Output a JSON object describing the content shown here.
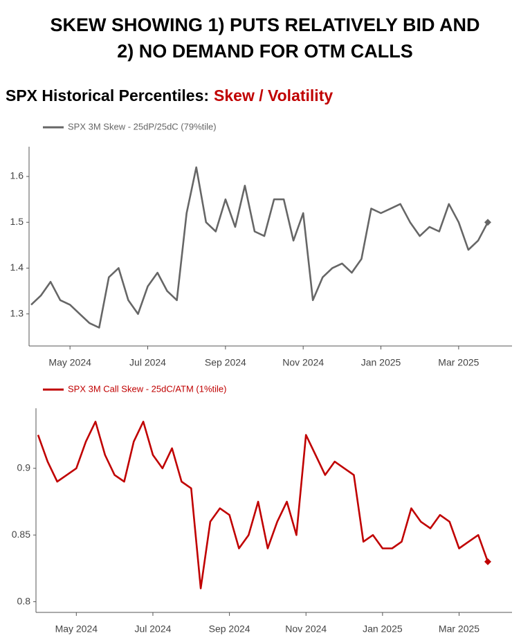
{
  "header": {
    "title": [
      "SKEW SHOWING 1) PUTS RELATIVELY BID AND",
      "2) NO DEMAND FOR OTM CALLS"
    ],
    "subtitle": "SPX Historical Percentiles:",
    "subtitle_highlight": "Skew / Volatility"
  },
  "chart_data": [
    {
      "type": "line",
      "x": [
        "2024-04",
        "2024-04",
        "2024-04",
        "2024-04",
        "2024-05",
        "2024-05",
        "2024-05",
        "2024-05",
        "2024-06",
        "2024-06",
        "2024-06",
        "2024-06",
        "2024-07",
        "2024-07",
        "2024-07",
        "2024-07",
        "2024-08",
        "2024-08",
        "2024-08",
        "2024-08",
        "2024-09",
        "2024-09",
        "2024-09",
        "2024-09",
        "2024-10",
        "2024-10",
        "2024-10",
        "2024-10",
        "2024-11",
        "2024-11",
        "2024-11",
        "2024-11",
        "2024-12",
        "2024-12",
        "2024-12",
        "2024-12",
        "2025-01",
        "2025-01",
        "2025-01",
        "2025-01",
        "2025-02",
        "2025-02",
        "2025-02",
        "2025-02",
        "2025-03",
        "2025-03",
        "2025-03",
        "2025-03"
      ],
      "series": [
        {
          "name": "SPX 3M Skew - 25dP/25dC (79%tile)",
          "color": "#666666",
          "values": [
            1.32,
            1.34,
            1.37,
            1.33,
            1.32,
            1.3,
            1.28,
            1.27,
            1.38,
            1.4,
            1.33,
            1.3,
            1.36,
            1.39,
            1.35,
            1.33,
            1.52,
            1.62,
            1.5,
            1.48,
            1.55,
            1.49,
            1.58,
            1.48,
            1.47,
            1.55,
            1.55,
            1.46,
            1.52,
            1.33,
            1.38,
            1.4,
            1.41,
            1.39,
            1.42,
            1.53,
            1.52,
            1.53,
            1.54,
            1.5,
            1.47,
            1.49,
            1.48,
            1.54,
            1.5,
            1.44,
            1.46,
            1.5
          ]
        }
      ],
      "xticks": [
        {
          "value": "2024-05",
          "label": "May 2024"
        },
        {
          "value": "2024-07",
          "label": "Jul 2024"
        },
        {
          "value": "2024-09",
          "label": "Sep 2024"
        },
        {
          "value": "2024-11",
          "label": "Nov 2024"
        },
        {
          "value": "2025-01",
          "label": "Jan 2025"
        },
        {
          "value": "2025-03",
          "label": "Mar 2025"
        }
      ],
      "ylim": [
        1.23,
        1.665
      ],
      "yticks": [
        1.3,
        1.4,
        1.5,
        1.6
      ],
      "end_marker": "diamond"
    },
    {
      "type": "line",
      "x": [
        "2024-04",
        "2024-04",
        "2024-04",
        "2024-04",
        "2024-05",
        "2024-05",
        "2024-05",
        "2024-05",
        "2024-06",
        "2024-06",
        "2024-06",
        "2024-06",
        "2024-07",
        "2024-07",
        "2024-07",
        "2024-07",
        "2024-08",
        "2024-08",
        "2024-08",
        "2024-08",
        "2024-09",
        "2024-09",
        "2024-09",
        "2024-09",
        "2024-10",
        "2024-10",
        "2024-10",
        "2024-10",
        "2024-11",
        "2024-11",
        "2024-11",
        "2024-11",
        "2024-12",
        "2024-12",
        "2024-12",
        "2024-12",
        "2025-01",
        "2025-01",
        "2025-01",
        "2025-01",
        "2025-02",
        "2025-02",
        "2025-02",
        "2025-02",
        "2025-03",
        "2025-03",
        "2025-03",
        "2025-03"
      ],
      "series": [
        {
          "name": "SPX 3M Call Skew - 25dC/ATM (1%tile)",
          "color": "#c00000",
          "values": [
            0.925,
            0.905,
            0.89,
            0.895,
            0.9,
            0.92,
            0.935,
            0.91,
            0.895,
            0.89,
            0.92,
            0.935,
            0.91,
            0.9,
            0.915,
            0.89,
            0.885,
            0.81,
            0.86,
            0.87,
            0.865,
            0.84,
            0.85,
            0.875,
            0.84,
            0.86,
            0.875,
            0.85,
            0.925,
            0.91,
            0.895,
            0.905,
            0.9,
            0.895,
            0.845,
            0.85,
            0.84,
            0.84,
            0.845,
            0.87,
            0.86,
            0.855,
            0.865,
            0.86,
            0.84,
            0.845,
            0.85,
            0.83
          ]
        }
      ],
      "xticks": [
        {
          "value": "2024-05",
          "label": "May 2024"
        },
        {
          "value": "2024-07",
          "label": "Jul 2024"
        },
        {
          "value": "2024-09",
          "label": "Sep 2024"
        },
        {
          "value": "2024-11",
          "label": "Nov 2024"
        },
        {
          "value": "2025-01",
          "label": "Jan 2025"
        },
        {
          "value": "2025-03",
          "label": "Mar 2025"
        }
      ],
      "ylim": [
        0.792,
        0.945
      ],
      "yticks": [
        0.8,
        0.85,
        0.9
      ],
      "end_marker": "diamond"
    }
  ]
}
